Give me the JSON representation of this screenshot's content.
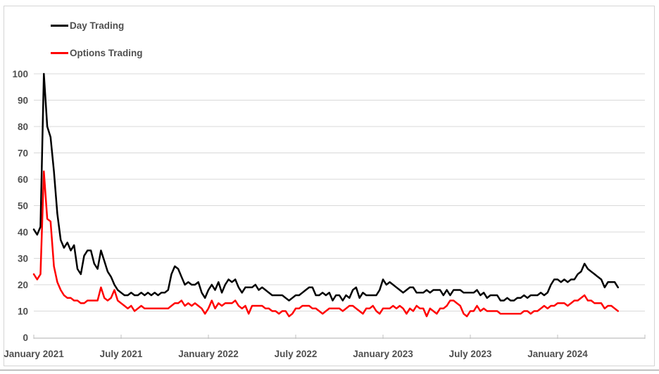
{
  "chart_data": {
    "type": "line",
    "title": "",
    "grid": "horizontal",
    "legend_position": "top-left",
    "y_axis": {
      "min": 0,
      "max": 100,
      "tick_step": 10,
      "tick_labels": [
        "0",
        "10",
        "20",
        "30",
        "40",
        "50",
        "60",
        "70",
        "80",
        "90",
        "100"
      ]
    },
    "x_axis": {
      "tick_labels": [
        "January 2021",
        "July 2021",
        "January 2022",
        "July 2022",
        "January 2023",
        "July 2023",
        "January 2024"
      ],
      "weeks_per_tick": 26,
      "frequency": "weekly"
    },
    "series": [
      {
        "name": "Day Trading",
        "color": "#000000",
        "values": [
          41,
          39,
          42,
          100,
          80,
          76,
          63,
          47,
          37,
          34,
          36,
          33,
          35,
          26,
          24,
          31,
          33,
          33,
          28,
          26,
          33,
          29,
          25,
          23,
          20,
          18,
          17,
          16,
          16,
          17,
          16,
          16,
          17,
          16,
          17,
          16,
          17,
          16,
          17,
          17,
          18,
          24,
          27,
          26,
          23,
          20,
          21,
          20,
          20,
          21,
          17,
          15,
          18,
          20,
          18,
          21,
          17,
          20,
          22,
          21,
          22,
          19,
          17,
          19,
          19,
          19,
          20,
          18,
          19,
          18,
          17,
          16,
          16,
          16,
          16,
          15,
          14,
          15,
          16,
          16,
          17,
          18,
          19,
          19,
          16,
          16,
          17,
          16,
          17,
          14,
          16,
          16,
          14,
          16,
          15,
          18,
          19,
          15,
          17,
          16,
          16,
          16,
          16,
          18,
          22,
          20,
          21,
          20,
          19,
          18,
          17,
          18,
          19,
          19,
          17,
          17,
          17,
          18,
          17,
          18,
          18,
          18,
          16,
          18,
          16,
          18,
          18,
          18,
          17,
          17,
          17,
          17,
          18,
          16,
          17,
          15,
          16,
          16,
          16,
          14,
          14,
          15,
          14,
          14,
          15,
          15,
          16,
          15,
          16,
          16,
          16,
          17,
          16,
          17,
          20,
          22,
          22,
          21,
          22,
          21,
          22,
          22,
          24,
          25,
          28,
          26,
          25,
          24,
          23,
          22,
          19,
          21,
          21,
          21,
          19
        ]
      },
      {
        "name": "Options Trading",
        "color": "#FF0000",
        "values": [
          24,
          22,
          24,
          63,
          45,
          44,
          27,
          21,
          18,
          16,
          15,
          15,
          14,
          14,
          13,
          13,
          14,
          14,
          14,
          14,
          19,
          15,
          14,
          15,
          18,
          14,
          13,
          12,
          11,
          12,
          10,
          11,
          12,
          11,
          11,
          11,
          11,
          11,
          11,
          11,
          11,
          12,
          13,
          13,
          14,
          12,
          13,
          12,
          13,
          12,
          11,
          9,
          11,
          14,
          11,
          13,
          12,
          13,
          13,
          13,
          14,
          12,
          11,
          12,
          9,
          12,
          12,
          12,
          12,
          11,
          11,
          10,
          10,
          9,
          10,
          10,
          8,
          9,
          11,
          11,
          12,
          12,
          12,
          11,
          11,
          10,
          9,
          10,
          11,
          11,
          11,
          11,
          10,
          11,
          12,
          12,
          11,
          10,
          9,
          11,
          11,
          12,
          10,
          9,
          11,
          11,
          11,
          12,
          11,
          12,
          11,
          9,
          11,
          10,
          12,
          11,
          11,
          8,
          11,
          10,
          9,
          11,
          11,
          12,
          14,
          14,
          13,
          12,
          9,
          8,
          10,
          10,
          12,
          10,
          11,
          10,
          10,
          10,
          10,
          9,
          9,
          9,
          9,
          9,
          9,
          9,
          10,
          10,
          9,
          10,
          10,
          11,
          12,
          11,
          12,
          12,
          13,
          13,
          13,
          12,
          13,
          14,
          14,
          15,
          16,
          14,
          14,
          13,
          13,
          13,
          11,
          12,
          12,
          11,
          10
        ]
      }
    ]
  },
  "colors": {
    "background": "#FFFFFF",
    "gridline": "#D9D9D9",
    "axis_line": "#BFBFBF",
    "axis_text": "#4F4F4F",
    "frame_border": "#D4D4D4",
    "bottom_rule": "#ABABAB"
  }
}
